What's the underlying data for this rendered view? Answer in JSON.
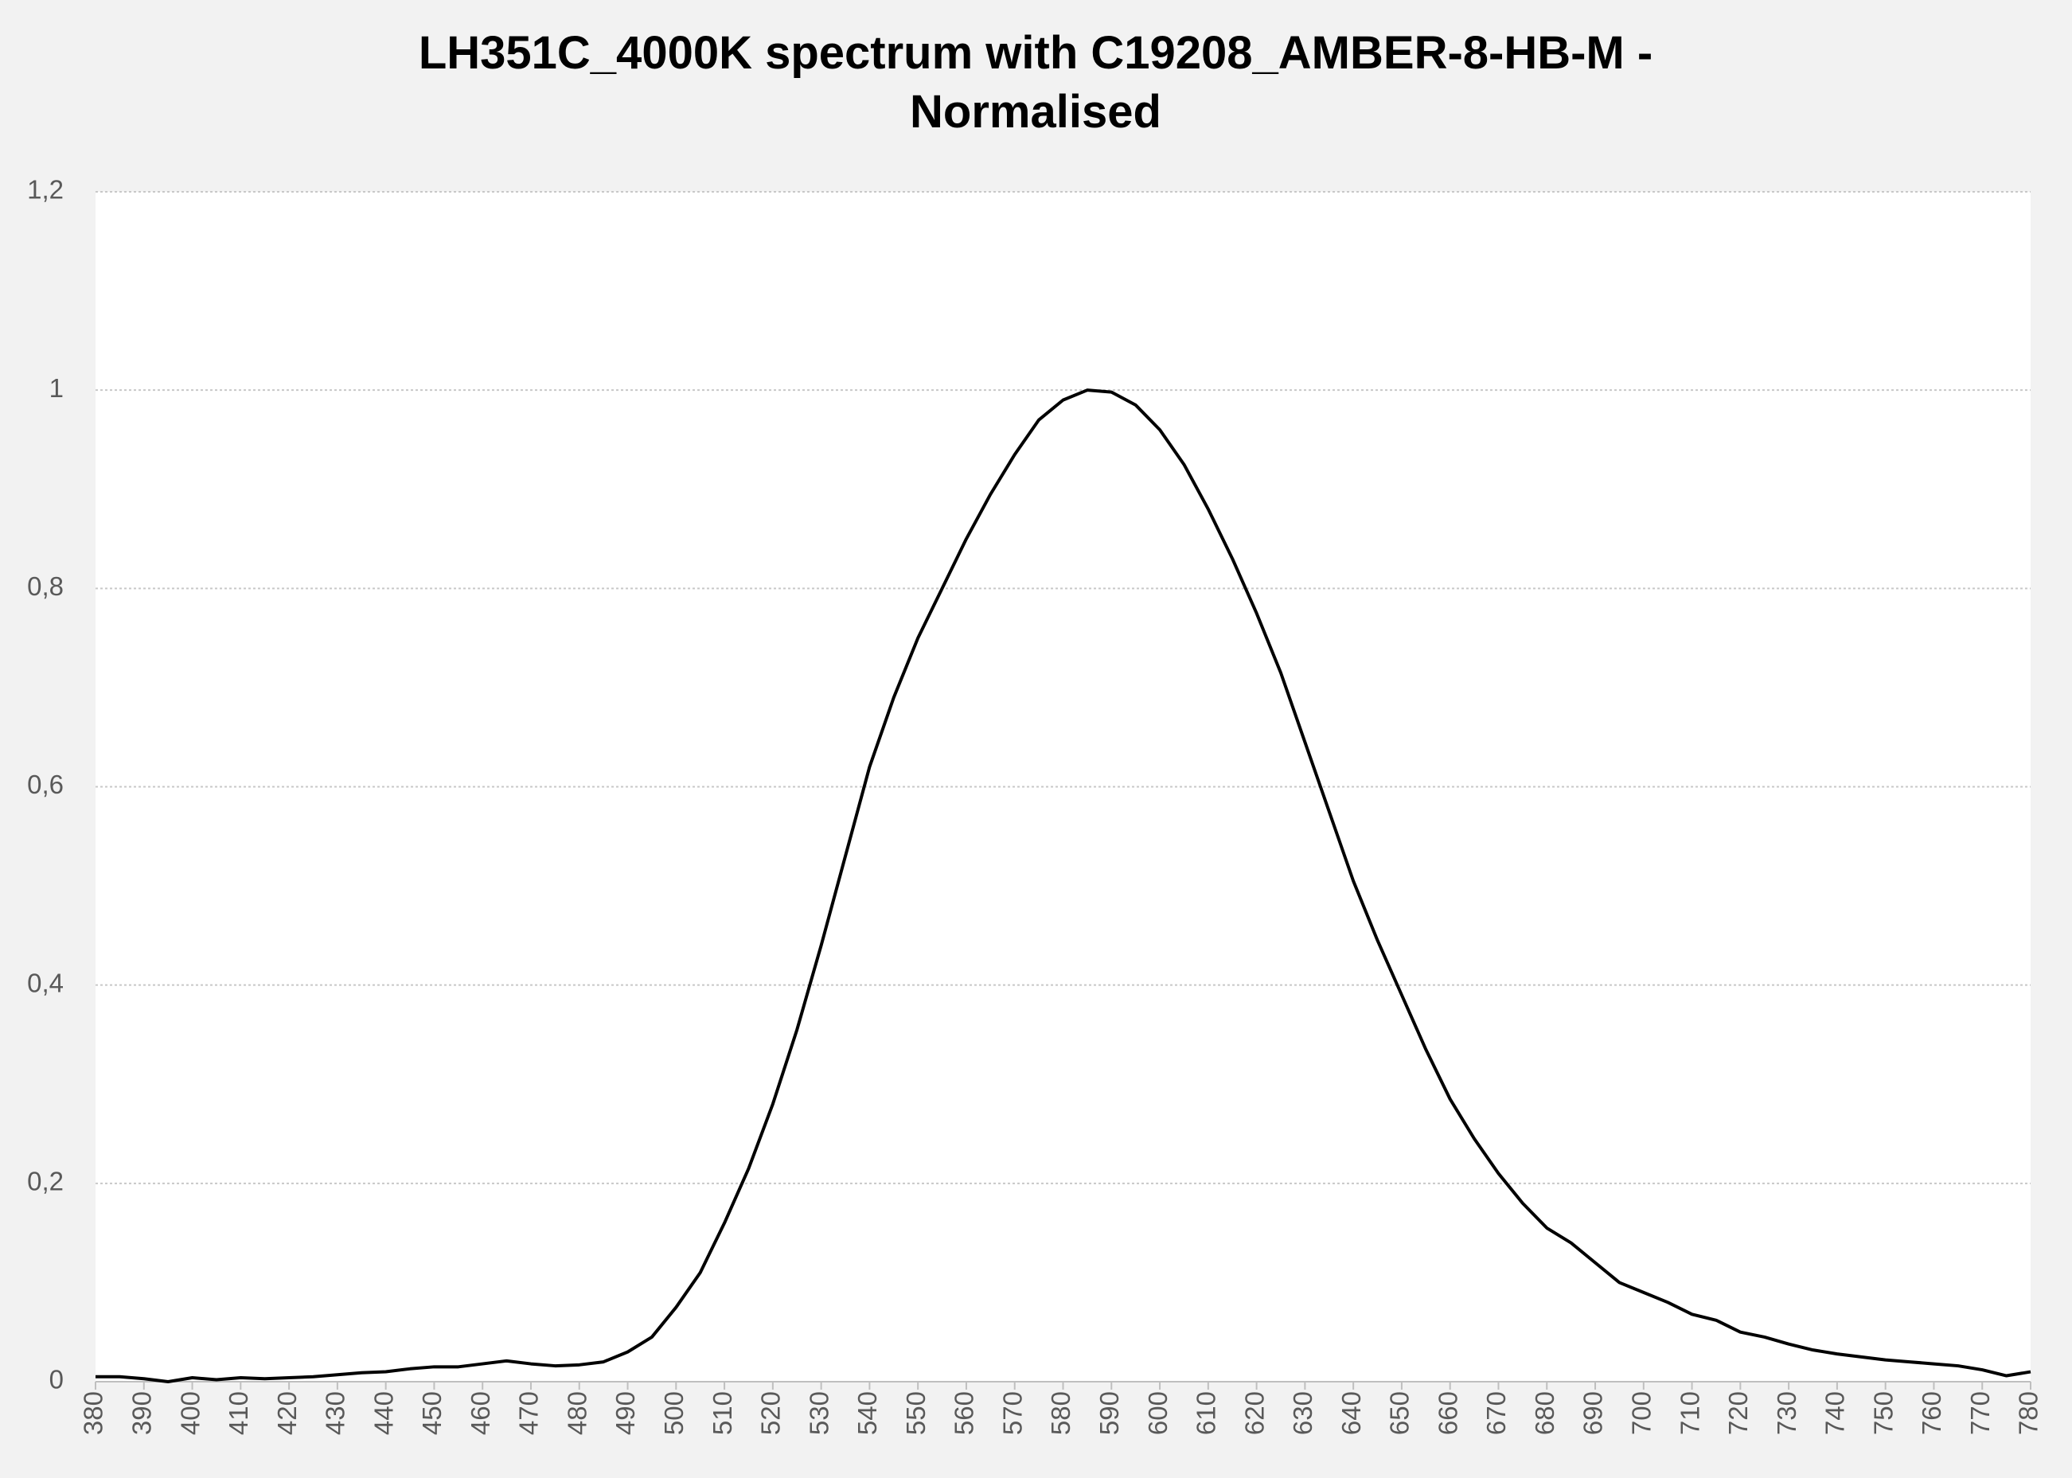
{
  "chart_data": {
    "type": "line",
    "title": "LH351C_4000K spectrum with C19208_AMBER-8-HB-M - Normalised",
    "x": [
      380,
      385,
      390,
      395,
      400,
      405,
      410,
      415,
      420,
      425,
      430,
      435,
      440,
      445,
      450,
      455,
      460,
      465,
      470,
      475,
      480,
      485,
      490,
      495,
      500,
      505,
      510,
      515,
      520,
      525,
      530,
      535,
      540,
      545,
      550,
      555,
      560,
      565,
      570,
      575,
      580,
      585,
      590,
      595,
      600,
      605,
      610,
      615,
      620,
      625,
      630,
      635,
      640,
      645,
      650,
      655,
      660,
      665,
      670,
      675,
      680,
      685,
      690,
      695,
      700,
      705,
      710,
      715,
      720,
      725,
      730,
      735,
      740,
      745,
      750,
      755,
      760,
      765,
      770,
      775,
      780
    ],
    "series": [
      {
        "color": "#000000",
        "values": [
          0.005,
          0.005,
          0.003,
          0.0,
          0.004,
          0.002,
          0.004,
          0.003,
          0.004,
          0.005,
          0.007,
          0.009,
          0.01,
          0.013,
          0.015,
          0.015,
          0.018,
          0.021,
          0.018,
          0.016,
          0.017,
          0.02,
          0.03,
          0.045,
          0.075,
          0.11,
          0.16,
          0.215,
          0.28,
          0.355,
          0.44,
          0.53,
          0.62,
          0.69,
          0.75,
          0.8,
          0.85,
          0.895,
          0.935,
          0.97,
          0.99,
          1.0,
          0.998,
          0.985,
          0.96,
          0.925,
          0.88,
          0.83,
          0.775,
          0.715,
          0.645,
          0.575,
          0.505,
          0.445,
          0.39,
          0.335,
          0.285,
          0.245,
          0.21,
          0.18,
          0.155,
          0.14,
          0.12,
          0.1,
          0.09,
          0.08,
          0.068,
          0.062,
          0.05,
          0.045,
          0.038,
          0.032,
          0.028,
          0.025,
          0.022,
          0.02,
          0.018,
          0.016,
          0.012,
          0.006,
          0.01
        ]
      }
    ],
    "xlim": [
      380,
      780
    ],
    "xticks": [
      380,
      390,
      400,
      410,
      420,
      430,
      440,
      450,
      460,
      470,
      480,
      490,
      500,
      510,
      520,
      530,
      540,
      550,
      560,
      570,
      580,
      590,
      600,
      610,
      620,
      630,
      640,
      650,
      660,
      670,
      680,
      690,
      700,
      710,
      720,
      730,
      740,
      750,
      760,
      770,
      780
    ],
    "ylim": [
      0,
      1.2
    ],
    "yticks": [
      0,
      {
        "value": 0.2,
        "label": "0,2"
      },
      {
        "value": 0.4,
        "label": "0,4"
      },
      {
        "value": 0.6,
        "label": "0,6"
      },
      {
        "value": 0.8,
        "label": "0,8"
      },
      1,
      {
        "value": 1.2,
        "label": "1,2"
      }
    ],
    "grid": true
  }
}
